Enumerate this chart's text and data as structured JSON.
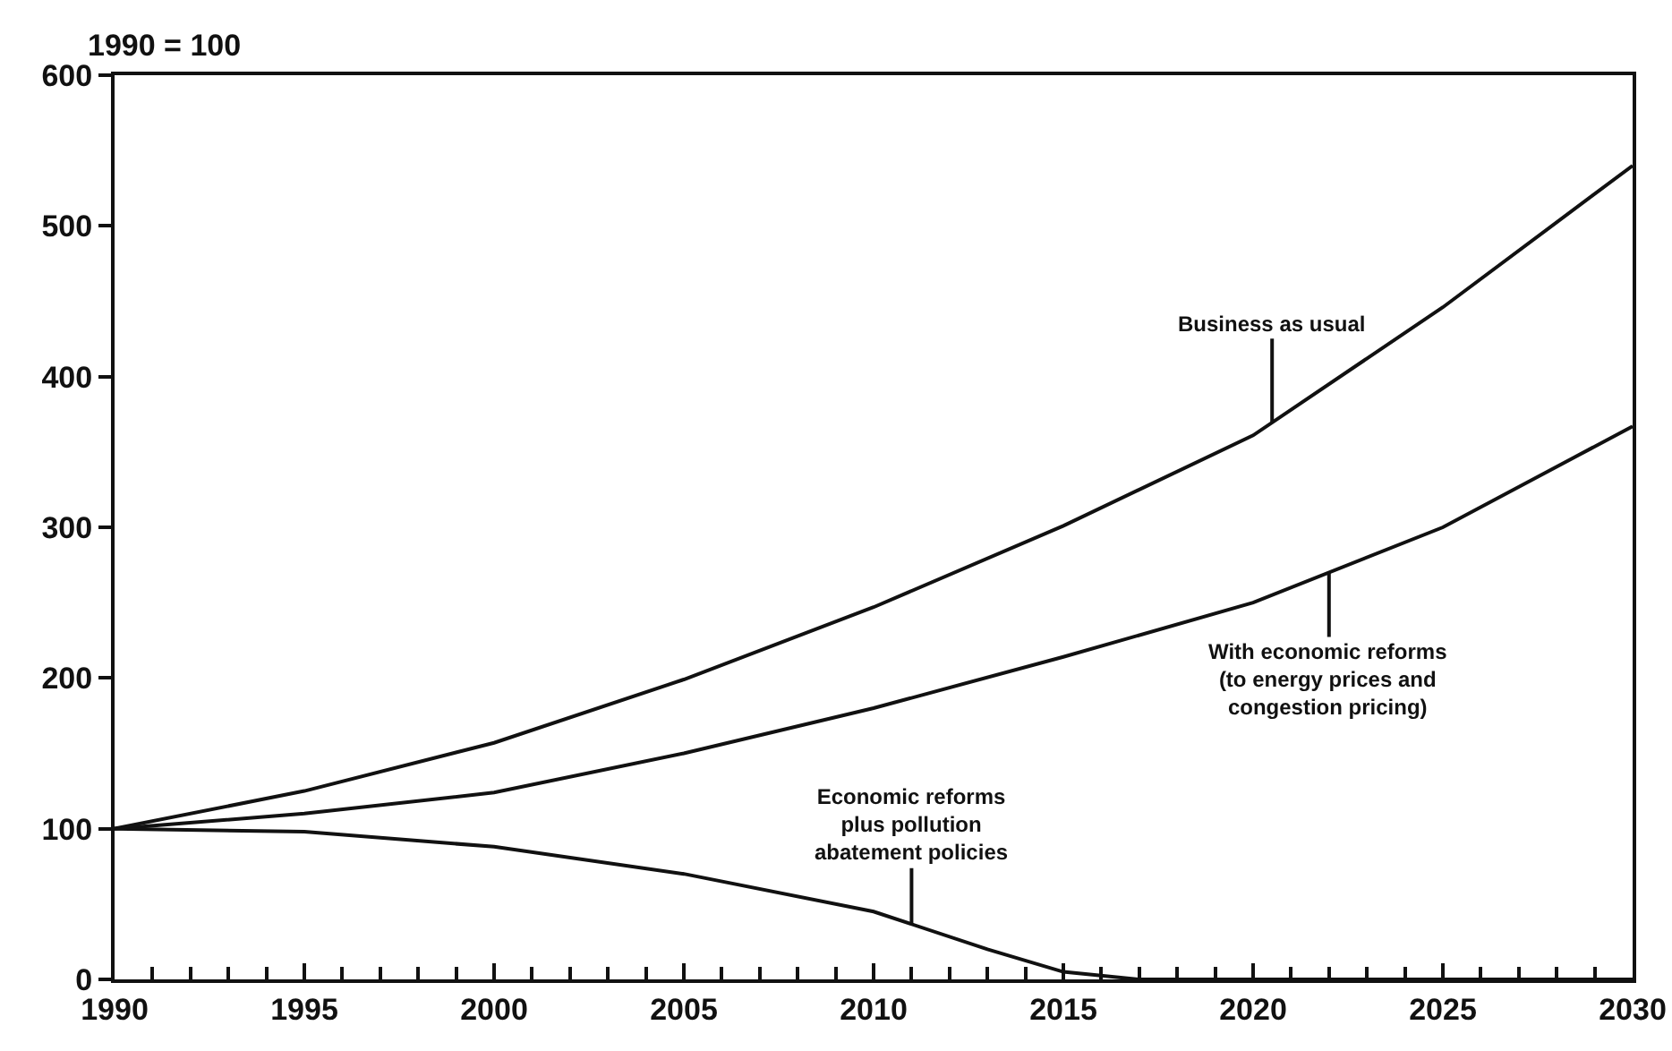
{
  "chart_data": {
    "type": "line",
    "ylabel": "1990 = 100",
    "x": [
      1990,
      1995,
      2000,
      2005,
      2010,
      2015,
      2020,
      2025,
      2030
    ],
    "series": [
      {
        "color": "#111111",
        "values": [
          100,
          125,
          157,
          199,
          247,
          301,
          361,
          446,
          540
        ]
      },
      {
        "color": "#111111",
        "values": [
          100,
          110,
          124,
          150,
          180,
          214,
          250,
          300,
          367
        ]
      },
      {
        "color": "#111111",
        "x": [
          1990,
          1995,
          2000,
          2005,
          2010,
          2013,
          2015,
          2017,
          2020,
          2025,
          2030
        ],
        "values": [
          100,
          98,
          88,
          70,
          45,
          20,
          5,
          0,
          0,
          0,
          0
        ]
      }
    ],
    "annotations": [
      {
        "text": "Business as usual",
        "x": 2020.5,
        "y": 370
      },
      {
        "text": "With economic reforms\n(to energy prices and\ncongestion pricing)",
        "x": 2022,
        "y": 270
      },
      {
        "text": "Economic reforms\nplus pollution\nabatement policies",
        "x": 2011,
        "y": 37
      }
    ],
    "xlim": [
      1990,
      2030
    ],
    "ylim": [
      0,
      600
    ],
    "xticks": [
      1990,
      1995,
      2000,
      2005,
      2010,
      2015,
      2020,
      2025,
      2030
    ],
    "yticks": [
      0,
      100,
      200,
      300,
      400,
      500,
      600
    ],
    "marker": "none",
    "line_style": "solid"
  }
}
